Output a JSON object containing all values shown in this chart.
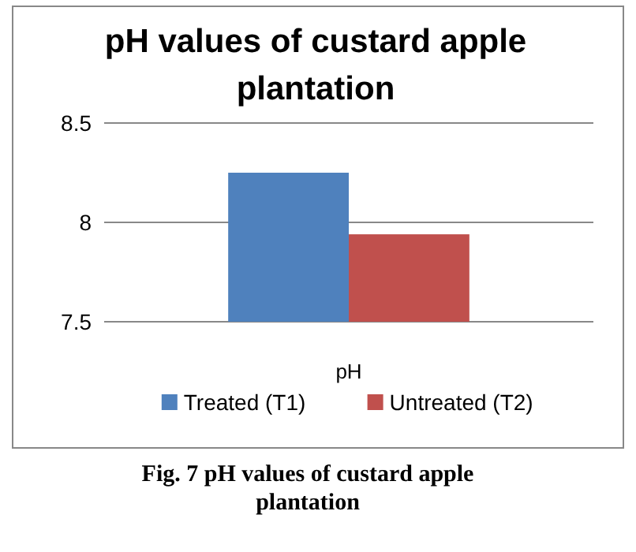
{
  "chart_data": {
    "type": "bar",
    "title": "pH  values of custard apple plantation",
    "categories": [
      "pH"
    ],
    "series": [
      {
        "name": "Treated (T1)",
        "color": "#4f81bd",
        "values": [
          8.25
        ]
      },
      {
        "name": "Untreated (T2)",
        "color": "#c0504d",
        "values": [
          7.94
        ]
      }
    ],
    "ylim": [
      7.5,
      8.5
    ],
    "yticks": [
      7.5,
      8,
      8.5
    ],
    "grid": "y",
    "legend": "bottom",
    "annotations": [
      "Fig. 7 pH values of custard apple plantation"
    ]
  }
}
